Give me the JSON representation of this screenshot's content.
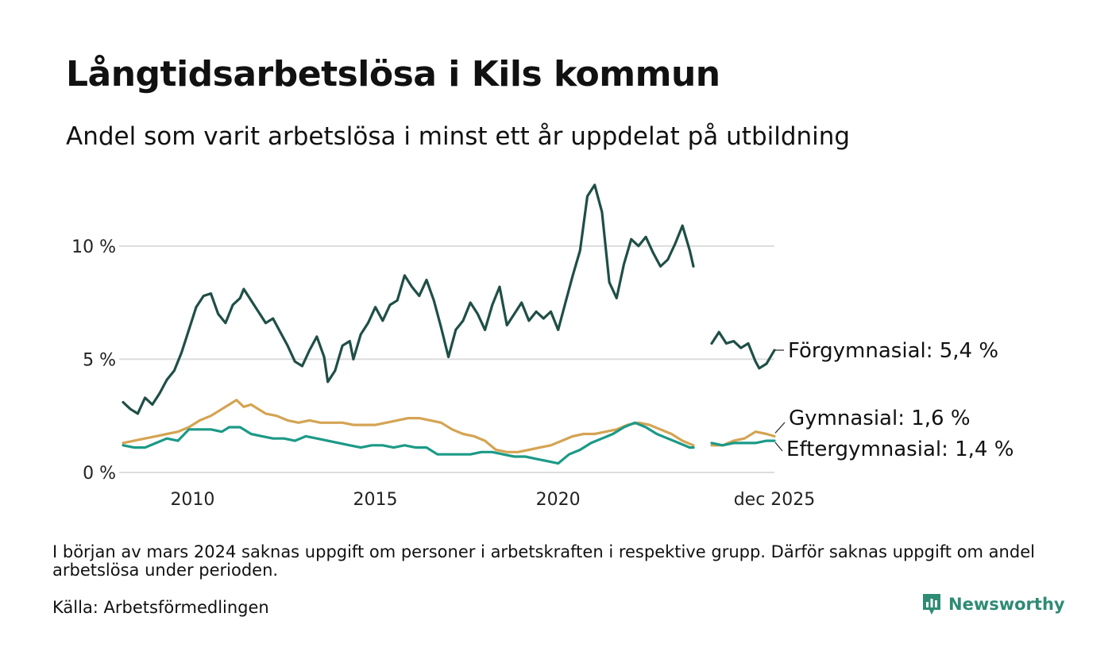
{
  "header": {
    "title": "Långtidsarbetslösa i Kils kommun",
    "subtitle": "Andel som varit arbetslösa i minst ett år uppdelat på utbildning"
  },
  "footer": {
    "note": "I början av mars 2024 saknas uppgift om personer i arbetskraften i respektive grupp. Därför saknas uppgift om andel arbetslösa under perioden.",
    "source": "Källa: Arbetsförmedlingen",
    "logo_text": "Newsworthy"
  },
  "chart_data": {
    "type": "line",
    "title": "Långtidsarbetslösa i Kils kommun",
    "xlabel": "",
    "ylabel": "",
    "xlim": [
      2008.1,
      2025.917
    ],
    "ylim": [
      0,
      12.8
    ],
    "grid": true,
    "gap": [
      2023.8,
      2024.17
    ],
    "y_ticks": [
      {
        "value": 0,
        "label": "0 %"
      },
      {
        "value": 5,
        "label": "5 %"
      },
      {
        "value": 10,
        "label": "10 %"
      }
    ],
    "x_ticks": [
      {
        "value": 2010,
        "label": "2010"
      },
      {
        "value": 2015,
        "label": "2015"
      },
      {
        "value": 2020,
        "label": "2020"
      },
      {
        "value": 2025.917,
        "label": "dec 2025"
      }
    ],
    "series": [
      {
        "name": "Förgymnasial",
        "end_label": "Förgymnasial: 5,4 %",
        "color": "#1f4f46",
        "points": [
          [
            2008.1,
            3.1
          ],
          [
            2008.3,
            2.8
          ],
          [
            2008.5,
            2.6
          ],
          [
            2008.7,
            3.3
          ],
          [
            2008.9,
            3.0
          ],
          [
            2009.1,
            3.5
          ],
          [
            2009.3,
            4.1
          ],
          [
            2009.5,
            4.5
          ],
          [
            2009.7,
            5.3
          ],
          [
            2009.9,
            6.3
          ],
          [
            2010.1,
            7.3
          ],
          [
            2010.3,
            7.8
          ],
          [
            2010.5,
            7.9
          ],
          [
            2010.7,
            7.0
          ],
          [
            2010.9,
            6.6
          ],
          [
            2011.1,
            7.4
          ],
          [
            2011.3,
            7.7
          ],
          [
            2011.4,
            8.1
          ],
          [
            2011.6,
            7.6
          ],
          [
            2011.8,
            7.1
          ],
          [
            2012.0,
            6.6
          ],
          [
            2012.2,
            6.8
          ],
          [
            2012.4,
            6.2
          ],
          [
            2012.6,
            5.6
          ],
          [
            2012.8,
            4.9
          ],
          [
            2013.0,
            4.7
          ],
          [
            2013.2,
            5.4
          ],
          [
            2013.4,
            6.0
          ],
          [
            2013.6,
            5.1
          ],
          [
            2013.7,
            4.0
          ],
          [
            2013.9,
            4.5
          ],
          [
            2014.1,
            5.6
          ],
          [
            2014.3,
            5.8
          ],
          [
            2014.4,
            5.0
          ],
          [
            2014.6,
            6.1
          ],
          [
            2014.8,
            6.6
          ],
          [
            2015.0,
            7.3
          ],
          [
            2015.2,
            6.7
          ],
          [
            2015.4,
            7.4
          ],
          [
            2015.6,
            7.6
          ],
          [
            2015.8,
            8.7
          ],
          [
            2016.0,
            8.2
          ],
          [
            2016.2,
            7.8
          ],
          [
            2016.4,
            8.5
          ],
          [
            2016.6,
            7.6
          ],
          [
            2016.8,
            6.4
          ],
          [
            2017.0,
            5.1
          ],
          [
            2017.2,
            6.3
          ],
          [
            2017.4,
            6.7
          ],
          [
            2017.6,
            7.5
          ],
          [
            2017.8,
            7.0
          ],
          [
            2018.0,
            6.3
          ],
          [
            2018.2,
            7.4
          ],
          [
            2018.4,
            8.2
          ],
          [
            2018.6,
            6.5
          ],
          [
            2018.8,
            7.0
          ],
          [
            2019.0,
            7.5
          ],
          [
            2019.2,
            6.7
          ],
          [
            2019.4,
            7.1
          ],
          [
            2019.6,
            6.8
          ],
          [
            2019.8,
            7.1
          ],
          [
            2020.0,
            6.3
          ],
          [
            2020.2,
            7.5
          ],
          [
            2020.4,
            8.7
          ],
          [
            2020.6,
            9.8
          ],
          [
            2020.8,
            12.2
          ],
          [
            2021.0,
            12.7
          ],
          [
            2021.2,
            11.5
          ],
          [
            2021.4,
            8.4
          ],
          [
            2021.6,
            7.7
          ],
          [
            2021.8,
            9.2
          ],
          [
            2022.0,
            10.3
          ],
          [
            2022.2,
            10.0
          ],
          [
            2022.4,
            10.4
          ],
          [
            2022.6,
            9.7
          ],
          [
            2022.8,
            9.1
          ],
          [
            2023.0,
            9.4
          ],
          [
            2023.2,
            10.1
          ],
          [
            2023.4,
            10.9
          ],
          [
            2023.6,
            9.8
          ],
          [
            2023.7,
            9.1
          ],
          null,
          [
            2024.2,
            5.7
          ],
          [
            2024.4,
            6.2
          ],
          [
            2024.6,
            5.7
          ],
          [
            2024.8,
            5.8
          ],
          [
            2025.0,
            5.5
          ],
          [
            2025.2,
            5.7
          ],
          [
            2025.4,
            4.9
          ],
          [
            2025.5,
            4.6
          ],
          [
            2025.7,
            4.8
          ],
          [
            2025.917,
            5.4
          ]
        ]
      },
      {
        "name": "Gymnasial",
        "end_label": "Gymnasial: 1,6 %",
        "color": "#d4a453",
        "points": [
          [
            2008.1,
            1.3
          ],
          [
            2008.4,
            1.4
          ],
          [
            2008.7,
            1.5
          ],
          [
            2009.0,
            1.6
          ],
          [
            2009.3,
            1.7
          ],
          [
            2009.6,
            1.8
          ],
          [
            2009.9,
            2.0
          ],
          [
            2010.2,
            2.3
          ],
          [
            2010.5,
            2.5
          ],
          [
            2010.8,
            2.8
          ],
          [
            2011.0,
            3.0
          ],
          [
            2011.2,
            3.2
          ],
          [
            2011.4,
            2.9
          ],
          [
            2011.6,
            3.0
          ],
          [
            2011.8,
            2.8
          ],
          [
            2012.0,
            2.6
          ],
          [
            2012.3,
            2.5
          ],
          [
            2012.6,
            2.3
          ],
          [
            2012.9,
            2.2
          ],
          [
            2013.2,
            2.3
          ],
          [
            2013.5,
            2.2
          ],
          [
            2013.8,
            2.2
          ],
          [
            2014.1,
            2.2
          ],
          [
            2014.4,
            2.1
          ],
          [
            2014.7,
            2.1
          ],
          [
            2015.0,
            2.1
          ],
          [
            2015.3,
            2.2
          ],
          [
            2015.6,
            2.3
          ],
          [
            2015.9,
            2.4
          ],
          [
            2016.2,
            2.4
          ],
          [
            2016.5,
            2.3
          ],
          [
            2016.8,
            2.2
          ],
          [
            2017.1,
            1.9
          ],
          [
            2017.4,
            1.7
          ],
          [
            2017.7,
            1.6
          ],
          [
            2018.0,
            1.4
          ],
          [
            2018.3,
            1.0
          ],
          [
            2018.6,
            0.9
          ],
          [
            2018.9,
            0.9
          ],
          [
            2019.2,
            1.0
          ],
          [
            2019.5,
            1.1
          ],
          [
            2019.8,
            1.2
          ],
          [
            2020.1,
            1.4
          ],
          [
            2020.4,
            1.6
          ],
          [
            2020.7,
            1.7
          ],
          [
            2021.0,
            1.7
          ],
          [
            2021.3,
            1.8
          ],
          [
            2021.6,
            1.9
          ],
          [
            2021.9,
            2.1
          ],
          [
            2022.2,
            2.2
          ],
          [
            2022.5,
            2.1
          ],
          [
            2022.8,
            1.9
          ],
          [
            2023.1,
            1.7
          ],
          [
            2023.4,
            1.4
          ],
          [
            2023.7,
            1.2
          ],
          null,
          [
            2024.2,
            1.2
          ],
          [
            2024.5,
            1.2
          ],
          [
            2024.8,
            1.4
          ],
          [
            2025.1,
            1.5
          ],
          [
            2025.4,
            1.8
          ],
          [
            2025.7,
            1.7
          ],
          [
            2025.917,
            1.6
          ]
        ]
      },
      {
        "name": "Eftergymnasial",
        "end_label": "Eftergymnasial: 1,4 %",
        "color": "#1b9a87",
        "points": [
          [
            2008.1,
            1.2
          ],
          [
            2008.4,
            1.1
          ],
          [
            2008.7,
            1.1
          ],
          [
            2009.0,
            1.3
          ],
          [
            2009.3,
            1.5
          ],
          [
            2009.6,
            1.4
          ],
          [
            2009.9,
            1.9
          ],
          [
            2010.2,
            1.9
          ],
          [
            2010.5,
            1.9
          ],
          [
            2010.8,
            1.8
          ],
          [
            2011.0,
            2.0
          ],
          [
            2011.3,
            2.0
          ],
          [
            2011.6,
            1.7
          ],
          [
            2011.9,
            1.6
          ],
          [
            2012.2,
            1.5
          ],
          [
            2012.5,
            1.5
          ],
          [
            2012.8,
            1.4
          ],
          [
            2013.1,
            1.6
          ],
          [
            2013.4,
            1.5
          ],
          [
            2013.7,
            1.4
          ],
          [
            2014.0,
            1.3
          ],
          [
            2014.3,
            1.2
          ],
          [
            2014.6,
            1.1
          ],
          [
            2014.9,
            1.2
          ],
          [
            2015.2,
            1.2
          ],
          [
            2015.5,
            1.1
          ],
          [
            2015.8,
            1.2
          ],
          [
            2016.1,
            1.1
          ],
          [
            2016.4,
            1.1
          ],
          [
            2016.7,
            0.8
          ],
          [
            2017.0,
            0.8
          ],
          [
            2017.3,
            0.8
          ],
          [
            2017.6,
            0.8
          ],
          [
            2017.9,
            0.9
          ],
          [
            2018.2,
            0.9
          ],
          [
            2018.5,
            0.8
          ],
          [
            2018.8,
            0.7
          ],
          [
            2019.1,
            0.7
          ],
          [
            2019.4,
            0.6
          ],
          [
            2019.7,
            0.5
          ],
          [
            2020.0,
            0.4
          ],
          [
            2020.3,
            0.8
          ],
          [
            2020.6,
            1.0
          ],
          [
            2020.9,
            1.3
          ],
          [
            2021.2,
            1.5
          ],
          [
            2021.5,
            1.7
          ],
          [
            2021.8,
            2.0
          ],
          [
            2022.1,
            2.2
          ],
          [
            2022.4,
            2.0
          ],
          [
            2022.7,
            1.7
          ],
          [
            2023.0,
            1.5
          ],
          [
            2023.3,
            1.3
          ],
          [
            2023.6,
            1.1
          ],
          [
            2023.7,
            1.1
          ],
          null,
          [
            2024.2,
            1.3
          ],
          [
            2024.5,
            1.2
          ],
          [
            2024.8,
            1.3
          ],
          [
            2025.1,
            1.3
          ],
          [
            2025.4,
            1.3
          ],
          [
            2025.7,
            1.4
          ],
          [
            2025.917,
            1.4
          ]
        ]
      }
    ]
  }
}
